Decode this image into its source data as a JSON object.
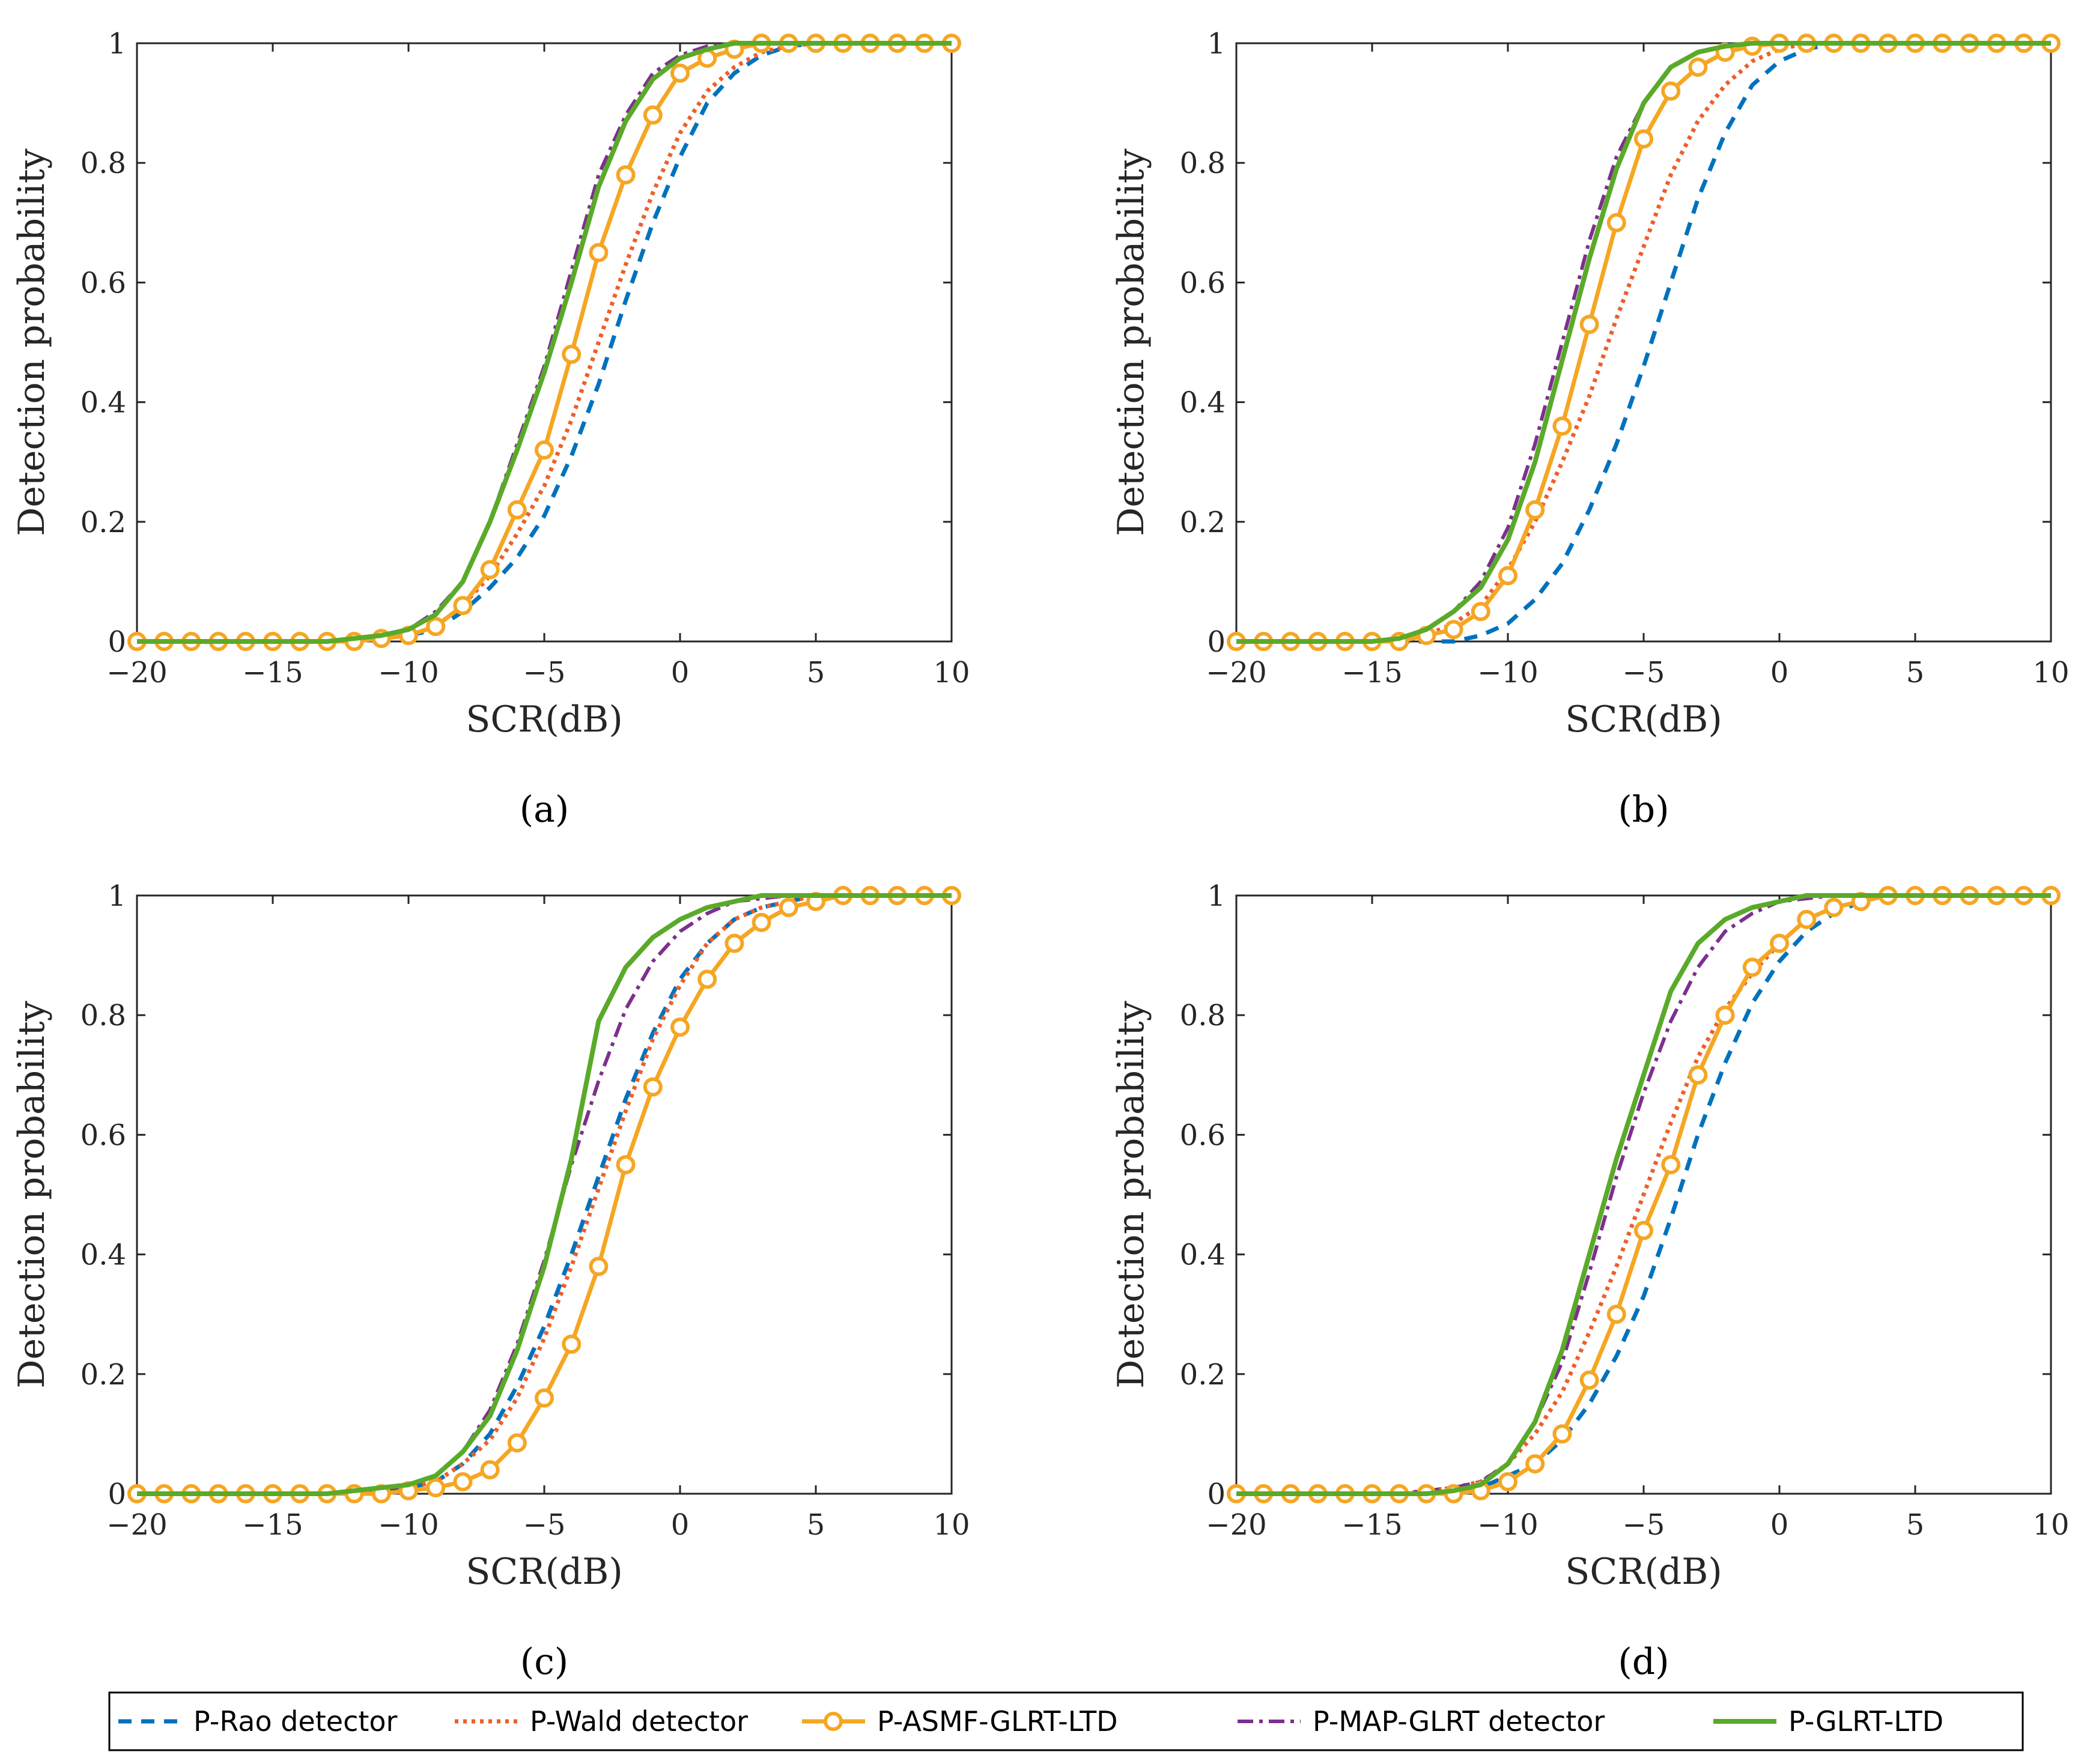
{
  "colors": {
    "rao": "#0072BD",
    "wald": "#ED5F2B",
    "asmf": "#F5A623",
    "map": "#7E2F8E",
    "glrt": "#5AAA2A"
  },
  "legend": {
    "entries": [
      {
        "key": "rao",
        "label": "P-Rao detector",
        "style": "dashed"
      },
      {
        "key": "wald",
        "label": "P-Wald detector",
        "style": "dotted"
      },
      {
        "key": "asmf",
        "label": "P-ASMF-GLRT-LTD",
        "style": "solid-marker"
      },
      {
        "key": "map",
        "label": "P-MAP-GLRT detector",
        "style": "dashdot"
      },
      {
        "key": "glrt",
        "label": "P-GLRT-LTD",
        "style": "solid"
      }
    ]
  },
  "chart_data": [
    {
      "type": "line",
      "caption": "(a)",
      "xlabel": "SCR(dB)",
      "ylabel": "Detection probability",
      "xlim": [
        -20,
        10
      ],
      "ylim": [
        0,
        1
      ],
      "xticks": [
        "−20",
        "−15",
        "−10",
        "−5",
        "0",
        "5",
        "10"
      ],
      "yticks": [
        "0",
        "0.2",
        "0.4",
        "0.6",
        "0.8",
        "1"
      ],
      "x": [
        -20,
        -19,
        -18,
        -17,
        -16,
        -15,
        -14,
        -13,
        -12,
        -11,
        -10,
        -9,
        -8,
        -7,
        -6,
        -5,
        -4,
        -3,
        -2,
        -1,
        0,
        1,
        2,
        3,
        4,
        5,
        6,
        7,
        8,
        9,
        10
      ],
      "series": [
        {
          "name": "P-Rao detector",
          "key": "rao",
          "values": [
            0,
            0,
            0,
            0,
            0,
            0,
            0,
            0,
            0,
            0.005,
            0.01,
            0.02,
            0.05,
            0.09,
            0.14,
            0.21,
            0.31,
            0.43,
            0.57,
            0.7,
            0.81,
            0.9,
            0.95,
            0.98,
            0.995,
            1,
            1,
            1,
            1,
            1,
            1
          ]
        },
        {
          "name": "P-Wald detector",
          "key": "wald",
          "values": [
            0,
            0,
            0,
            0,
            0,
            0,
            0,
            0,
            0,
            0.005,
            0.01,
            0.025,
            0.06,
            0.11,
            0.18,
            0.26,
            0.37,
            0.5,
            0.63,
            0.75,
            0.85,
            0.92,
            0.96,
            0.985,
            0.995,
            1,
            1,
            1,
            1,
            1,
            1
          ]
        },
        {
          "name": "P-ASMF-GLRT-LTD",
          "key": "asmf",
          "values": [
            0,
            0,
            0,
            0,
            0,
            0,
            0,
            0,
            0,
            0.005,
            0.01,
            0.025,
            0.06,
            0.12,
            0.22,
            0.32,
            0.48,
            0.65,
            0.78,
            0.88,
            0.95,
            0.975,
            0.99,
            1,
            1,
            1,
            1,
            1,
            1,
            1,
            1
          ]
        },
        {
          "name": "P-MAP-GLRT detector",
          "key": "map",
          "values": [
            0,
            0,
            0,
            0,
            0,
            0,
            0,
            0,
            0,
            0.01,
            0.02,
            0.05,
            0.1,
            0.2,
            0.33,
            0.46,
            0.62,
            0.78,
            0.88,
            0.95,
            0.98,
            0.995,
            1,
            1,
            1,
            1,
            1,
            1,
            1,
            1,
            1
          ]
        },
        {
          "name": "P-GLRT-LTD",
          "key": "glrt",
          "values": [
            0,
            0,
            0,
            0,
            0,
            0,
            0,
            0,
            0.005,
            0.01,
            0.02,
            0.045,
            0.1,
            0.2,
            0.32,
            0.45,
            0.6,
            0.76,
            0.87,
            0.94,
            0.975,
            0.99,
            1,
            1,
            1,
            1,
            1,
            1,
            1,
            1,
            1
          ]
        }
      ]
    },
    {
      "type": "line",
      "caption": "(b)",
      "xlabel": "SCR(dB)",
      "ylabel": "Detection probability",
      "xlim": [
        -20,
        10
      ],
      "ylim": [
        0,
        1
      ],
      "xticks": [
        "−20",
        "−15",
        "−10",
        "−5",
        "0",
        "5",
        "10"
      ],
      "yticks": [
        "0",
        "0.2",
        "0.4",
        "0.6",
        "0.8",
        "1"
      ],
      "x": [
        -20,
        -19,
        -18,
        -17,
        -16,
        -15,
        -14,
        -13,
        -12,
        -11,
        -10,
        -9,
        -8,
        -7,
        -6,
        -5,
        -4,
        -3,
        -2,
        -1,
        0,
        1,
        2,
        3,
        4,
        5,
        6,
        7,
        8,
        9,
        10
      ],
      "series": [
        {
          "name": "P-Rao detector",
          "key": "rao",
          "values": [
            0,
            0,
            0,
            0,
            0,
            0,
            0,
            0,
            0,
            0.01,
            0.03,
            0.07,
            0.13,
            0.22,
            0.33,
            0.46,
            0.6,
            0.74,
            0.85,
            0.93,
            0.97,
            0.99,
            1,
            1,
            1,
            1,
            1,
            1,
            1,
            1,
            1
          ]
        },
        {
          "name": "P-Wald detector",
          "key": "wald",
          "values": [
            0,
            0,
            0,
            0,
            0,
            0,
            0.005,
            0.01,
            0.03,
            0.06,
            0.12,
            0.2,
            0.3,
            0.41,
            0.54,
            0.66,
            0.78,
            0.87,
            0.93,
            0.97,
            0.99,
            1,
            1,
            1,
            1,
            1,
            1,
            1,
            1,
            1,
            1
          ]
        },
        {
          "name": "P-ASMF-GLRT-LTD",
          "key": "asmf",
          "values": [
            0,
            0,
            0,
            0,
            0,
            0,
            0,
            0.01,
            0.02,
            0.05,
            0.11,
            0.22,
            0.36,
            0.53,
            0.7,
            0.84,
            0.92,
            0.96,
            0.985,
            0.995,
            1,
            1,
            1,
            1,
            1,
            1,
            1,
            1,
            1,
            1,
            1
          ]
        },
        {
          "name": "P-MAP-GLRT detector",
          "key": "map",
          "values": [
            0,
            0,
            0,
            0,
            0,
            0,
            0.005,
            0.02,
            0.05,
            0.1,
            0.19,
            0.33,
            0.5,
            0.67,
            0.81,
            0.9,
            0.96,
            0.985,
            0.995,
            1,
            1,
            1,
            1,
            1,
            1,
            1,
            1,
            1,
            1,
            1,
            1
          ]
        },
        {
          "name": "P-GLRT-LTD",
          "key": "glrt",
          "values": [
            0,
            0,
            0,
            0,
            0,
            0,
            0.005,
            0.02,
            0.05,
            0.09,
            0.17,
            0.3,
            0.47,
            0.64,
            0.79,
            0.9,
            0.96,
            0.985,
            0.995,
            1,
            1,
            1,
            1,
            1,
            1,
            1,
            1,
            1,
            1,
            1,
            1
          ]
        }
      ]
    },
    {
      "type": "line",
      "caption": "(c)",
      "xlabel": "SCR(dB)",
      "ylabel": "Detection probability",
      "xlim": [
        -20,
        10
      ],
      "ylim": [
        0,
        1
      ],
      "xticks": [
        "−20",
        "−15",
        "−10",
        "−5",
        "0",
        "5",
        "10"
      ],
      "yticks": [
        "0",
        "0.2",
        "0.4",
        "0.6",
        "0.8",
        "1"
      ],
      "x": [
        -20,
        -19,
        -18,
        -17,
        -16,
        -15,
        -14,
        -13,
        -12,
        -11,
        -10,
        -9,
        -8,
        -7,
        -6,
        -5,
        -4,
        -3,
        -2,
        -1,
        0,
        1,
        2,
        3,
        4,
        5,
        6,
        7,
        8,
        9,
        10
      ],
      "series": [
        {
          "name": "P-Rao detector",
          "key": "rao",
          "values": [
            0,
            0,
            0,
            0,
            0,
            0,
            0,
            0,
            0,
            0.005,
            0.01,
            0.02,
            0.05,
            0.1,
            0.18,
            0.28,
            0.4,
            0.53,
            0.66,
            0.77,
            0.86,
            0.92,
            0.96,
            0.98,
            0.99,
            1,
            1,
            1,
            1,
            1,
            1
          ]
        },
        {
          "name": "P-Wald detector",
          "key": "wald",
          "values": [
            0,
            0,
            0,
            0,
            0,
            0,
            0,
            0,
            0,
            0.005,
            0.01,
            0.02,
            0.05,
            0.09,
            0.16,
            0.26,
            0.38,
            0.51,
            0.64,
            0.76,
            0.85,
            0.92,
            0.96,
            0.98,
            0.99,
            1,
            1,
            1,
            1,
            1,
            1
          ]
        },
        {
          "name": "P-ASMF-GLRT-LTD",
          "key": "asmf",
          "values": [
            0,
            0,
            0,
            0,
            0,
            0,
            0,
            0,
            0,
            0,
            0.005,
            0.01,
            0.02,
            0.04,
            0.085,
            0.16,
            0.25,
            0.38,
            0.55,
            0.68,
            0.78,
            0.86,
            0.92,
            0.955,
            0.98,
            0.99,
            1,
            1,
            1,
            1,
            1
          ]
        },
        {
          "name": "P-MAP-GLRT detector",
          "key": "map",
          "values": [
            0,
            0,
            0,
            0,
            0,
            0,
            0,
            0,
            0,
            0.005,
            0.015,
            0.03,
            0.07,
            0.14,
            0.25,
            0.39,
            0.55,
            0.69,
            0.81,
            0.89,
            0.94,
            0.97,
            0.99,
            0.995,
            1,
            1,
            1,
            1,
            1,
            1,
            1
          ]
        },
        {
          "name": "P-GLRT-LTD",
          "key": "glrt",
          "values": [
            0,
            0,
            0,
            0,
            0,
            0,
            0,
            0,
            0.005,
            0.01,
            0.015,
            0.03,
            0.07,
            0.13,
            0.24,
            0.38,
            0.56,
            0.79,
            0.88,
            0.93,
            0.96,
            0.98,
            0.99,
            1,
            1,
            1,
            1,
            1,
            1,
            1,
            1
          ]
        }
      ]
    },
    {
      "type": "line",
      "caption": "(d)",
      "xlabel": "SCR(dB)",
      "ylabel": "Detection probability",
      "xlim": [
        -20,
        10
      ],
      "ylim": [
        0,
        1
      ],
      "xticks": [
        "−20",
        "−15",
        "−10",
        "−5",
        "0",
        "5",
        "10"
      ],
      "yticks": [
        "0",
        "0.2",
        "0.4",
        "0.6",
        "0.8",
        "1"
      ],
      "x": [
        -20,
        -19,
        -18,
        -17,
        -16,
        -15,
        -14,
        -13,
        -12,
        -11,
        -10,
        -9,
        -8,
        -7,
        -6,
        -5,
        -4,
        -3,
        -2,
        -1,
        0,
        1,
        2,
        3,
        4,
        5,
        6,
        7,
        8,
        9,
        10
      ],
      "series": [
        {
          "name": "P-Rao detector",
          "key": "rao",
          "values": [
            0,
            0,
            0,
            0,
            0,
            0,
            0,
            0,
            0.005,
            0.01,
            0.03,
            0.05,
            0.09,
            0.15,
            0.23,
            0.33,
            0.46,
            0.6,
            0.72,
            0.82,
            0.89,
            0.94,
            0.97,
            0.99,
            1,
            1,
            1,
            1,
            1,
            1,
            1
          ]
        },
        {
          "name": "P-Wald detector",
          "key": "wald",
          "values": [
            0,
            0,
            0,
            0,
            0,
            0,
            0,
            0.005,
            0.01,
            0.02,
            0.05,
            0.1,
            0.17,
            0.27,
            0.38,
            0.5,
            0.62,
            0.73,
            0.81,
            0.87,
            0.92,
            0.96,
            0.98,
            0.99,
            1,
            1,
            1,
            1,
            1,
            1,
            1
          ]
        },
        {
          "name": "P-ASMF-GLRT-LTD",
          "key": "asmf",
          "values": [
            0,
            0,
            0,
            0,
            0,
            0,
            0,
            0,
            0,
            0.005,
            0.02,
            0.05,
            0.1,
            0.19,
            0.3,
            0.44,
            0.55,
            0.7,
            0.8,
            0.88,
            0.92,
            0.96,
            0.98,
            0.99,
            1,
            1,
            1,
            1,
            1,
            1,
            1
          ]
        },
        {
          "name": "P-MAP-GLRT detector",
          "key": "map",
          "values": [
            0,
            0,
            0,
            0,
            0,
            0,
            0,
            0.005,
            0.01,
            0.02,
            0.05,
            0.12,
            0.22,
            0.37,
            0.53,
            0.67,
            0.79,
            0.88,
            0.94,
            0.97,
            0.99,
            0.995,
            1,
            1,
            1,
            1,
            1,
            1,
            1,
            1,
            1
          ]
        },
        {
          "name": "P-GLRT-LTD",
          "key": "glrt",
          "values": [
            0,
            0,
            0,
            0,
            0,
            0,
            0,
            0,
            0.005,
            0.015,
            0.05,
            0.12,
            0.24,
            0.4,
            0.56,
            0.7,
            0.84,
            0.92,
            0.96,
            0.98,
            0.99,
            1,
            1,
            1,
            1,
            1,
            1,
            1,
            1,
            1,
            1
          ]
        }
      ]
    }
  ]
}
